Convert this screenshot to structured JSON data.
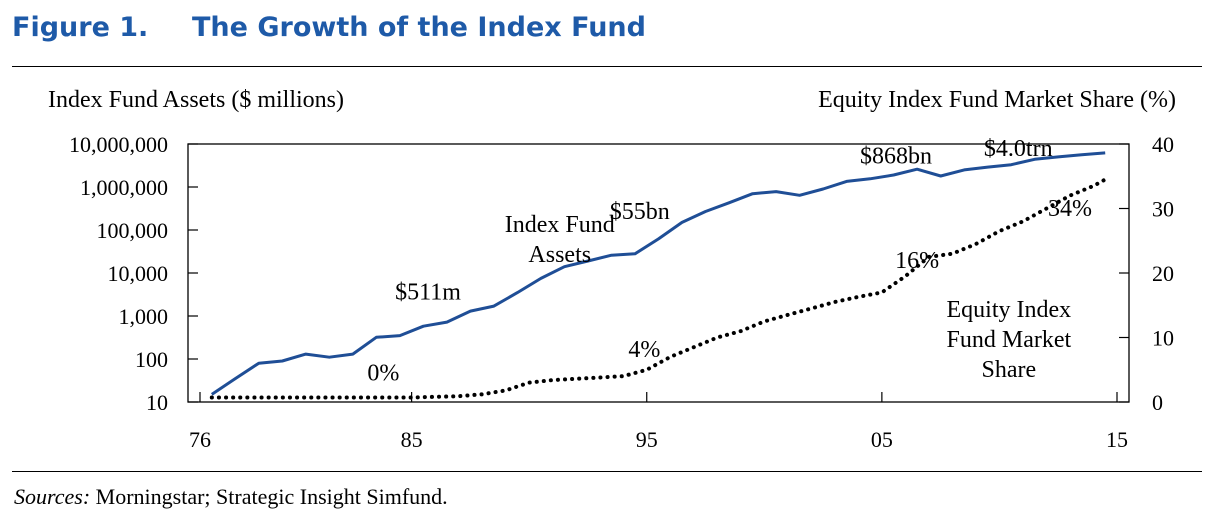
{
  "figure": {
    "number": "Figure 1.",
    "title": "The Growth of the Index Fund"
  },
  "source": {
    "label": "Sources:",
    "text": " Morningstar; Strategic Insight Simfund."
  },
  "colors": {
    "title": "#1e5aa8",
    "assets_line": "#1f4e96",
    "share_line": "#000000"
  },
  "chart_data": {
    "type": "line",
    "left_axis_label": "Index Fund Assets ($ millions)",
    "right_axis_label": "Equity Index Fund Market Share (%)",
    "x_tick_labels": [
      "76",
      "85",
      "95",
      "05",
      "15"
    ],
    "x_tick_years": [
      1976,
      1985,
      1995,
      2005,
      2015
    ],
    "xlim": [
      1976,
      2015
    ],
    "y_left_scale": "log",
    "y_left_ticks": [
      10,
      100,
      1000,
      10000,
      100000,
      1000000,
      10000000
    ],
    "y_left_tick_labels": [
      "10",
      "100",
      "1,000",
      "10,000",
      "100,000",
      "1,000,000",
      "10,000,000"
    ],
    "y_left_lim": [
      10,
      10000000
    ],
    "y_right_ticks": [
      0,
      10,
      20,
      30,
      40
    ],
    "y_right_tick_labels": [
      "0",
      "10",
      "20",
      "30",
      "40"
    ],
    "y_right_lim": [
      0,
      40
    ],
    "grid": false,
    "series": [
      {
        "name": "Index Fund Assets",
        "axis": "left",
        "style": "solid",
        "x": [
          1976.5,
          1977.5,
          1978.5,
          1979.5,
          1980.5,
          1981.5,
          1982.5,
          1983.5,
          1984.5,
          1985.5,
          1986.5,
          1987.5,
          1988.5,
          1989.5,
          1990.5,
          1991.5,
          1992.5,
          1993.5,
          1994.5,
          1995.5,
          1996.5,
          1997.5,
          1998.5,
          1999.5,
          2000.5,
          2001.5,
          2002.5,
          2003.5,
          2004.5,
          2005.5,
          2006.5,
          2007.5,
          2008.5,
          2009.5,
          2010.5,
          2011.5,
          2012.5,
          2013.5,
          2014.5
        ],
        "y": [
          15,
          35,
          80,
          90,
          130,
          110,
          130,
          320,
          350,
          580,
          720,
          1300,
          1700,
          3500,
          7500,
          14000,
          19000,
          26000,
          28000,
          62000,
          150000,
          270000,
          430000,
          700000,
          780000,
          640000,
          900000,
          1350000,
          1550000,
          1900000,
          2600000,
          1800000,
          2500000,
          2900000,
          3300000,
          4400000,
          5000000,
          5600000,
          6200000
        ]
      },
      {
        "name": "Equity Index Fund Market Share",
        "axis": "right",
        "style": "dotted",
        "x": [
          1976.5,
          1978,
          1980,
          1982,
          1984,
          1985,
          1986,
          1987,
          1988,
          1989,
          1990,
          1991,
          1992,
          1993,
          1994,
          1995,
          1996,
          1997,
          1998,
          1999,
          2000,
          2001,
          2002,
          2003,
          2004,
          2005,
          2006,
          2007,
          2008,
          2009,
          2010,
          2011,
          2012,
          2013,
          2014,
          2014.5
        ],
        "y": [
          0.7,
          0.7,
          0.7,
          0.7,
          0.7,
          0.7,
          0.8,
          0.9,
          1.2,
          1.8,
          3.0,
          3.4,
          3.6,
          3.8,
          4.0,
          5.0,
          7.0,
          8.5,
          10.0,
          11.0,
          12.5,
          13.5,
          14.5,
          15.5,
          16.3,
          17.0,
          19.5,
          22.5,
          23.0,
          24.5,
          26.5,
          28.0,
          30.0,
          32.0,
          33.5,
          34.5
        ]
      }
    ],
    "annotations": [
      {
        "text": "$511m",
        "x": 1985.7,
        "y_left": 2400
      },
      {
        "text": "$55bn",
        "x": 1994.7,
        "y_left": 180000
      },
      {
        "text": "$868bn",
        "x": 2005.6,
        "y_left": 3500000
      },
      {
        "text": "$4.0trn",
        "x": 2010.8,
        "y_left": 5300000
      },
      {
        "text": "0%",
        "x": 1983.8,
        "y_right": 3.3
      },
      {
        "text": "4%",
        "x": 1994.9,
        "y_right": 7.0
      },
      {
        "text": "16%",
        "x": 2006.5,
        "y_right": 20.8
      },
      {
        "text": "34%",
        "x": 2013.0,
        "y_right": 28.8
      }
    ],
    "series_labels": [
      {
        "lines": [
          "Index Fund",
          "Assets"
        ],
        "x": 1991.3,
        "y_left": 90000
      },
      {
        "lines": [
          "Equity Index",
          "Fund Market",
          "Share"
        ],
        "x": 2010.4,
        "y_right": 13.2
      }
    ]
  }
}
